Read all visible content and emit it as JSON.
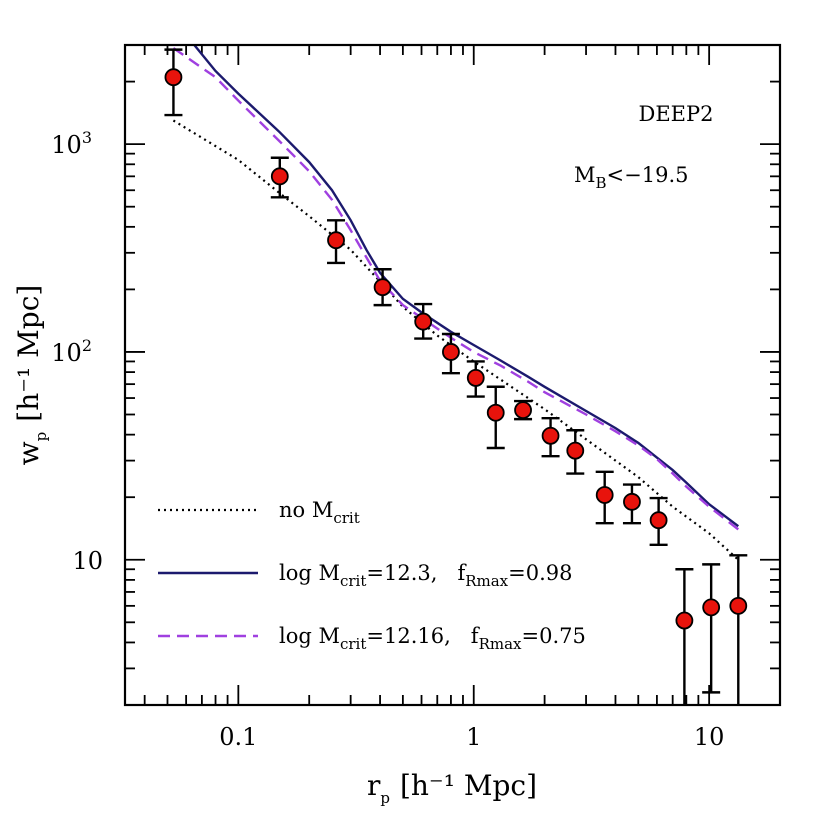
{
  "chart_data": {
    "type": "scatter",
    "title": "",
    "xlabel": {
      "main": "r",
      "sub": "p",
      "units": "[h⁻¹ Mpc]"
    },
    "ylabel": {
      "main": "w",
      "sub": "p",
      "units": "[h⁻¹ Mpc]"
    },
    "xscale": "log",
    "yscale": "log",
    "xlim": [
      0.033,
      20
    ],
    "ylim": [
      2.0,
      3000
    ],
    "grid": false,
    "x_tick_labels": [
      {
        "value": 0.1,
        "label": "0.1"
      },
      {
        "value": 1,
        "label": "1"
      },
      {
        "value": 10,
        "label": "10"
      }
    ],
    "y_tick_labels": [
      {
        "value": 10,
        "base": "10",
        "exp": ""
      },
      {
        "value": 100,
        "base": "10",
        "exp": "2"
      },
      {
        "value": 1000,
        "base": "10",
        "exp": "3"
      }
    ],
    "annotations": {
      "sample": "DEEP2",
      "cut": {
        "main": "M",
        "sub": "B",
        "rest": "<−19.5"
      }
    },
    "legend": {
      "placement": "bottom-left",
      "entries": [
        {
          "series": "no_mcrit",
          "parts": [
            [
              "t",
              "no M"
            ],
            [
              "s",
              "crit"
            ]
          ]
        },
        {
          "series": "mcrit_12_3",
          "parts": [
            [
              "t",
              "log M"
            ],
            [
              "s",
              "crit"
            ],
            [
              "t",
              "=12.3,   f"
            ],
            [
              "s",
              "Rmax"
            ],
            [
              "t",
              "=0.98"
            ]
          ]
        },
        {
          "series": "mcrit_12_16",
          "parts": [
            [
              "t",
              "log M"
            ],
            [
              "s",
              "crit"
            ],
            [
              "t",
              "=12.16,   f"
            ],
            [
              "s",
              "Rmax"
            ],
            [
              "t",
              "=0.75"
            ]
          ]
        }
      ]
    },
    "data_points": [
      {
        "x": 0.053,
        "y": 2100,
        "yerr_low": 1380,
        "yerr_high": 2850
      },
      {
        "x": 0.15,
        "y": 700,
        "yerr_low": 555,
        "yerr_high": 860
      },
      {
        "x": 0.26,
        "y": 345,
        "yerr_low": 268,
        "yerr_high": 430
      },
      {
        "x": 0.41,
        "y": 205,
        "yerr_low": 168,
        "yerr_high": 250
      },
      {
        "x": 0.61,
        "y": 140,
        "yerr_low": 116,
        "yerr_high": 170
      },
      {
        "x": 0.8,
        "y": 100,
        "yerr_low": 79,
        "yerr_high": 122
      },
      {
        "x": 1.02,
        "y": 75,
        "yerr_low": 61,
        "yerr_high": 90
      },
      {
        "x": 1.24,
        "y": 51,
        "yerr_low": 34.5,
        "yerr_high": 68
      },
      {
        "x": 1.62,
        "y": 52.5,
        "yerr_low": 47.5,
        "yerr_high": 58
      },
      {
        "x": 2.12,
        "y": 39.5,
        "yerr_low": 31.5,
        "yerr_high": 48
      },
      {
        "x": 2.7,
        "y": 33.5,
        "yerr_low": 26,
        "yerr_high": 42
      },
      {
        "x": 3.6,
        "y": 20.5,
        "yerr_low": 15,
        "yerr_high": 26.5
      },
      {
        "x": 4.7,
        "y": 19,
        "yerr_low": 15,
        "yerr_high": 23
      },
      {
        "x": 6.1,
        "y": 15.5,
        "yerr_low": 11.8,
        "yerr_high": 19.8
      },
      {
        "x": 7.85,
        "y": 5.1,
        "yerr_low": 2.0,
        "yerr_high": 9.0
      },
      {
        "x": 10.2,
        "y": 5.9,
        "yerr_low": 2.3,
        "yerr_high": 9.5
      },
      {
        "x": 13.3,
        "y": 6.0,
        "yerr_low": 2.0,
        "yerr_high": 10.5
      }
    ],
    "series": [
      {
        "id": "no_mcrit",
        "style": "dotted",
        "color": "#000000",
        "points": [
          [
            0.053,
            1300
          ],
          [
            0.1,
            840
          ],
          [
            0.15,
            580
          ],
          [
            0.2,
            450
          ],
          [
            0.3,
            310
          ],
          [
            0.4,
            218
          ],
          [
            0.5,
            165
          ],
          [
            0.7,
            120
          ],
          [
            1.0,
            90
          ],
          [
            1.5,
            66
          ],
          [
            2.0,
            53
          ],
          [
            3.0,
            38
          ],
          [
            4.0,
            30
          ],
          [
            5.0,
            25
          ],
          [
            7.0,
            18
          ],
          [
            10.0,
            13.4
          ],
          [
            13.3,
            10
          ]
        ]
      },
      {
        "id": "mcrit_12_3",
        "style": "solid",
        "color": "#1c1a6e",
        "points": [
          [
            0.065,
            3000
          ],
          [
            0.08,
            2250
          ],
          [
            0.1,
            1750
          ],
          [
            0.15,
            1140
          ],
          [
            0.2,
            820
          ],
          [
            0.25,
            600
          ],
          [
            0.3,
            430
          ],
          [
            0.35,
            310
          ],
          [
            0.4,
            240
          ],
          [
            0.5,
            180
          ],
          [
            0.6,
            155
          ],
          [
            0.8,
            125
          ],
          [
            1.0,
            108
          ],
          [
            1.3,
            91
          ],
          [
            1.7,
            76
          ],
          [
            2.0,
            68
          ],
          [
            3.0,
            52
          ],
          [
            4.0,
            43
          ],
          [
            5.0,
            36.5
          ],
          [
            6.0,
            31
          ],
          [
            7.0,
            27
          ],
          [
            8.0,
            23.5
          ],
          [
            10.0,
            18.5
          ],
          [
            13.3,
            14.5
          ]
        ]
      },
      {
        "id": "mcrit_12_16",
        "style": "dashed",
        "color": "#a040e0",
        "points": [
          [
            0.053,
            2900
          ],
          [
            0.08,
            2100
          ],
          [
            0.1,
            1620
          ],
          [
            0.15,
            1030
          ],
          [
            0.2,
            740
          ],
          [
            0.25,
            540
          ],
          [
            0.3,
            385
          ],
          [
            0.35,
            285
          ],
          [
            0.4,
            220
          ],
          [
            0.5,
            168
          ],
          [
            0.6,
            146
          ],
          [
            0.8,
            117
          ],
          [
            1.0,
            100
          ],
          [
            1.3,
            86
          ],
          [
            1.7,
            72
          ],
          [
            2.0,
            64
          ],
          [
            3.0,
            50
          ],
          [
            4.0,
            41.5
          ],
          [
            5.0,
            35.5
          ],
          [
            6.0,
            30.5
          ],
          [
            7.0,
            26
          ],
          [
            8.0,
            22.5
          ],
          [
            10.0,
            18
          ],
          [
            13.3,
            14
          ]
        ]
      }
    ]
  },
  "colors": {
    "marker_fill": "#e8130c",
    "marker_stroke": "#000000"
  }
}
